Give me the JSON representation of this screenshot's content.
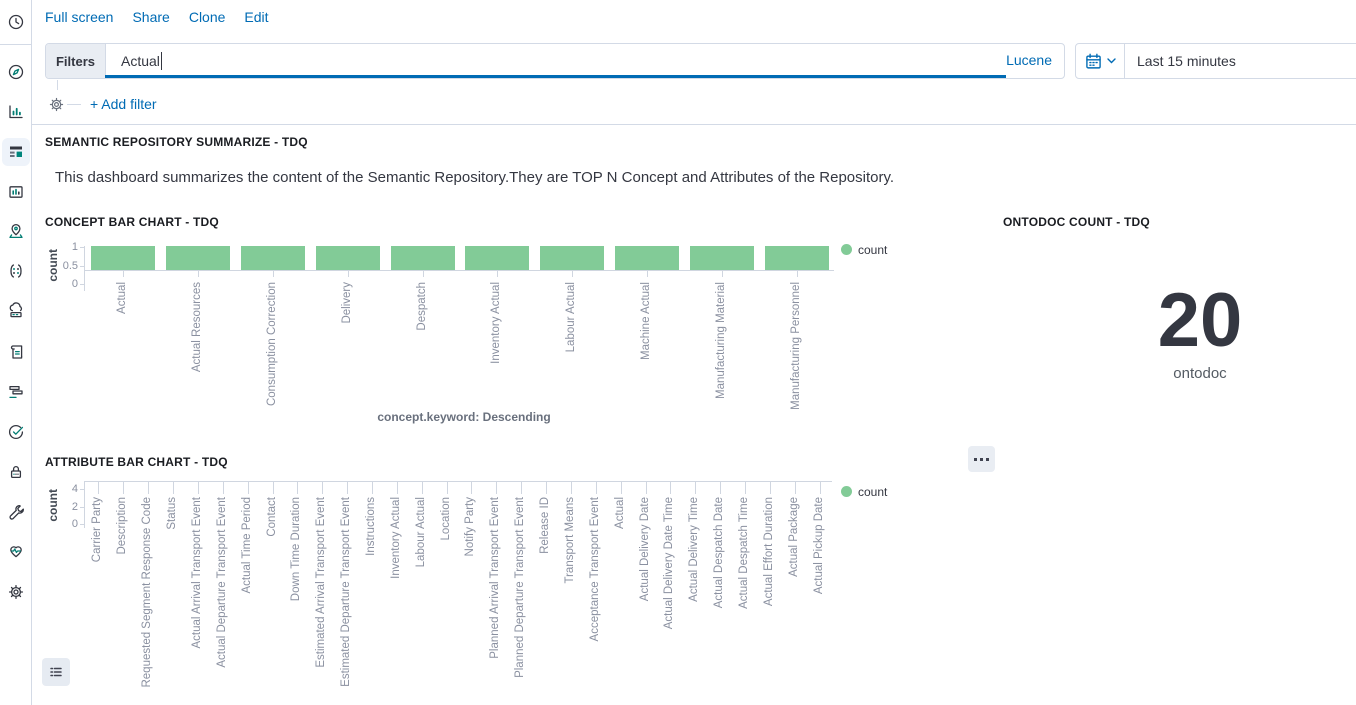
{
  "app_title": "Kibana dashboard",
  "colors": {
    "link_blue": "#006bb4",
    "bar_green": "#82cb97",
    "accent_teal": "#017d73",
    "text_dark": "#343741",
    "border": "#d3dae6"
  },
  "sidebar": {
    "icons": [
      "recent-clock",
      "discover-compass",
      "visualize-chart",
      "dashboard-app",
      "canvas",
      "maps-pin",
      "machine-learning",
      "metrics-cloud",
      "logs-scroll",
      "apm-traces",
      "uptime-check",
      "siem-lock",
      "dev-tools-wrench",
      "stack-monitoring-heart",
      "management-gear"
    ],
    "active_icon": "dashboard-app"
  },
  "topnav": {
    "links": [
      "Full screen",
      "Share",
      "Clone",
      "Edit"
    ]
  },
  "querybar": {
    "filters_label": "Filters",
    "query_value": "Actual",
    "syntax_label": "Lucene",
    "time_range": "Last 15 minutes"
  },
  "filter_row": {
    "add_filter_label": "+ Add filter"
  },
  "summary_panel": {
    "title": "SEMANTIC REPOSITORY SUMMARIZE - TDQ",
    "description": "This dashboard summarizes the content of the Semantic Repository.They are TOP N Concept and Attributes of the Repository."
  },
  "ontodoc_panel": {
    "title": "ONTODOC COUNT - TDQ",
    "value": "20",
    "label": "ontodoc"
  },
  "chart_data": [
    {
      "id": "concept",
      "type": "bar",
      "title": "CONCEPT BAR CHART - TDQ",
      "categories": [
        "Actual",
        "Actual Resources",
        "Consumption Correction",
        "Delivery",
        "Despatch",
        "Inventory Actual",
        "Labour Actual",
        "Machine Actual",
        "Manufacturing Material",
        "Manufacturing Personnel"
      ],
      "values": [
        1,
        1,
        1,
        1,
        1,
        1,
        1,
        1,
        1,
        1
      ],
      "ylabel": "count",
      "xlabel": "concept.keyword: Descending",
      "yticks": [
        0,
        0.5,
        1
      ],
      "ylim": [
        0,
        1
      ],
      "legend": [
        "count"
      ],
      "legend_position": "right",
      "bar_color": "#82cb97",
      "grid": false
    },
    {
      "id": "attribute",
      "type": "bar",
      "title": "ATTRIBUTE BAR CHART - TDQ",
      "categories": [
        "Carrier Party",
        "Description",
        "Requested Segment Response Code",
        "Status",
        "Actual Arrival Transport Event",
        "Actual Departure Transport Event",
        "Actual Time Period",
        "Contact",
        "Down Time Duration",
        "Estimated Arrival Transport Event",
        "Estimated Departure Transport Event",
        "Instructions",
        "Inventory Actual",
        "Labour Actual",
        "Location",
        "Notify Party",
        "Planned Arrival Transport Event",
        "Planned Departure Transport Event",
        "Release ID",
        "Transport Means",
        "Acceptance Transport Event",
        "Actual",
        "Actual Delivery Date",
        "Actual Delivery Date Time",
        "Actual Delivery Time",
        "Actual Despatch Date",
        "Actual Despatch Time",
        "Actual Effort Duration",
        "Actual Package",
        "Actual Pickup Date"
      ],
      "values": [
        0,
        0,
        0,
        0,
        0,
        0,
        0,
        0,
        0,
        0,
        0,
        0,
        0,
        0,
        0,
        0,
        0,
        0,
        0,
        0,
        0,
        0,
        0,
        0,
        0,
        0,
        0,
        0,
        0,
        0
      ],
      "ylabel": "count",
      "xlabel": "",
      "yticks": [
        0,
        2,
        4
      ],
      "ylim": [
        0,
        4
      ],
      "legend": [
        "count"
      ],
      "legend_position": "right",
      "bar_color": "#82cb97",
      "grid": false
    }
  ]
}
